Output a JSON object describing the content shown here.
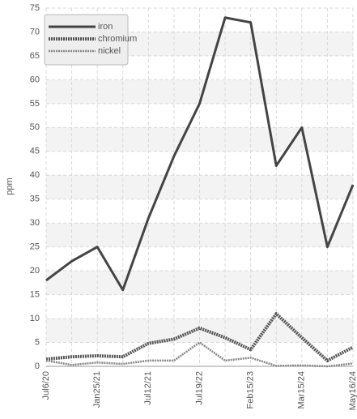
{
  "chart_data": {
    "type": "line",
    "y_label": "ppm",
    "categories": [
      "Jul6/20",
      null,
      "Jan25/21",
      null,
      "Jul12/21",
      null,
      "Jul19/22",
      null,
      "Feb15/23",
      null,
      "Mar15/24",
      null,
      "May16/24"
    ],
    "series": [
      {
        "name": "iron",
        "color": "#444444",
        "line_style": "solid",
        "values": [
          18,
          22,
          25,
          16,
          31,
          44,
          55,
          73,
          72,
          42,
          50,
          25,
          38
        ]
      },
      {
        "name": "chromium",
        "color": "#555555",
        "line_style": "dotted",
        "values": [
          1.5,
          2,
          2.2,
          2,
          4.8,
          5.7,
          8,
          6,
          3.5,
          11,
          6,
          1.2,
          4
        ]
      },
      {
        "name": "nickel",
        "color": "#888888",
        "line_style": "dotted",
        "values": [
          1.2,
          0.3,
          0.8,
          0.5,
          1.2,
          1.2,
          5,
          1.2,
          1.8,
          0.1,
          0.2,
          0,
          0.6
        ]
      }
    ],
    "ylim": [
      0,
      75
    ],
    "yticks": [
      0,
      5,
      10,
      15,
      20,
      25,
      30,
      35,
      40,
      45,
      50,
      55,
      60,
      65,
      70,
      75
    ],
    "grid": true,
    "legend_position": "top-left"
  }
}
